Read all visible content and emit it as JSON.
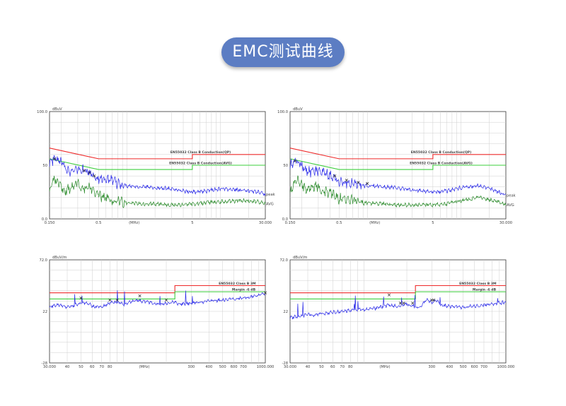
{
  "header": {
    "title": "EMC测试曲线"
  },
  "colors": {
    "limit": "#ee2a2a",
    "avg_limit": "#3ecf3e",
    "peak": "#2a2ae8",
    "avg": "#2a8a2a",
    "grid": "#cfcfcf",
    "axis": "#333333"
  },
  "chart_data": [
    {
      "type": "line",
      "title": "",
      "xscale": "log",
      "ylabel": "dBuV",
      "xlabel": "(MHz)",
      "ylim": [
        0,
        100
      ],
      "xlim": [
        0.15,
        30
      ],
      "ytick_labels": [
        "100.0",
        "50",
        "0.0"
      ],
      "ytick_values": [
        100,
        50,
        0
      ],
      "xtick_labels": [
        "0.150",
        "0.5",
        "(MHz)",
        "5",
        "30.000"
      ],
      "xtick_values": [
        0.15,
        0.5,
        1.2,
        5,
        30
      ],
      "limits": [
        {
          "name": "EN55032 Class B Conduction(QP)",
          "x": [
            0.15,
            0.5,
            5,
            5,
            30
          ],
          "y": [
            66,
            56,
            56,
            60,
            60
          ]
        },
        {
          "name": "EN55032 Class B Conduction(AVG)",
          "x": [
            0.15,
            0.5,
            5,
            5,
            30
          ],
          "y": [
            56,
            46,
            46,
            50,
            50
          ]
        }
      ],
      "series": [
        {
          "name": "peak",
          "x": [
            0.15,
            0.17,
            0.19,
            0.22,
            0.26,
            0.3,
            0.35,
            0.4,
            0.45,
            0.5,
            0.6,
            0.8,
            1,
            1.5,
            2,
            3,
            4,
            5,
            7,
            10,
            15,
            20,
            25,
            30
          ],
          "y": [
            52,
            56,
            54,
            48,
            44,
            46,
            45,
            43,
            40,
            38,
            37,
            33,
            31,
            30,
            29,
            28,
            26,
            25,
            26,
            28,
            27,
            26,
            25,
            23
          ]
        },
        {
          "name": "AVG",
          "x": [
            0.15,
            0.17,
            0.19,
            0.22,
            0.26,
            0.3,
            0.35,
            0.4,
            0.45,
            0.5,
            0.6,
            0.8,
            1,
            1.5,
            2,
            3,
            4,
            5,
            7,
            10,
            15,
            20,
            25,
            30
          ],
          "y": [
            27,
            38,
            32,
            26,
            30,
            33,
            28,
            30,
            25,
            22,
            19,
            17,
            15,
            14,
            14,
            13,
            13,
            14,
            15,
            16,
            17,
            17,
            16,
            14
          ]
        }
      ],
      "markers": [
        {
          "x": 0.17,
          "y": 56
        },
        {
          "x": 0.35,
          "y": 45
        },
        {
          "x": 0.4,
          "y": 43
        },
        {
          "x": 0.45,
          "y": 40
        }
      ]
    },
    {
      "type": "line",
      "title": "",
      "xscale": "log",
      "ylabel": "dBuV",
      "xlabel": "(MHz)",
      "ylim": [
        0,
        100
      ],
      "xlim": [
        0.15,
        30
      ],
      "ytick_labels": [
        "100.0",
        "50",
        "0.0"
      ],
      "ytick_values": [
        100,
        50,
        0
      ],
      "xtick_labels": [
        "0.150",
        "0.5",
        "(MHz)",
        "5",
        "30.000"
      ],
      "xtick_values": [
        0.15,
        0.5,
        1.2,
        5,
        30
      ],
      "limits": [
        {
          "name": "EN55032 Class B Conduction(QP)",
          "x": [
            0.15,
            0.5,
            5,
            5,
            30
          ],
          "y": [
            66,
            56,
            56,
            60,
            60
          ]
        },
        {
          "name": "EN55032 Class B Conduction(AVG)",
          "x": [
            0.15,
            0.5,
            5,
            5,
            30
          ],
          "y": [
            56,
            46,
            46,
            50,
            50
          ]
        }
      ],
      "series": [
        {
          "name": "peak",
          "x": [
            0.15,
            0.17,
            0.19,
            0.22,
            0.26,
            0.3,
            0.35,
            0.4,
            0.45,
            0.5,
            0.6,
            0.8,
            1,
            1.5,
            2,
            3,
            4,
            5,
            7,
            10,
            15,
            20,
            25,
            30
          ],
          "y": [
            50,
            54,
            52,
            46,
            44,
            45,
            42,
            40,
            38,
            36,
            34,
            33,
            31,
            30,
            29,
            27,
            26,
            25,
            26,
            29,
            31,
            28,
            25,
            22
          ]
        },
        {
          "name": "AVG",
          "x": [
            0.15,
            0.17,
            0.19,
            0.22,
            0.26,
            0.3,
            0.35,
            0.4,
            0.45,
            0.5,
            0.6,
            0.8,
            1,
            1.5,
            2,
            3,
            4,
            5,
            7,
            10,
            15,
            20,
            25,
            30
          ],
          "y": [
            26,
            36,
            34,
            28,
            31,
            30,
            26,
            25,
            22,
            19,
            18,
            16,
            15,
            14,
            13,
            13,
            13,
            13,
            14,
            17,
            20,
            18,
            16,
            13
          ]
        }
      ],
      "markers": [
        {
          "x": 0.17,
          "y": 54
        },
        {
          "x": 0.45,
          "y": 40
        },
        {
          "x": 0.6,
          "y": 36
        },
        {
          "x": 0.8,
          "y": 34
        },
        {
          "x": 1,
          "y": 33
        }
      ]
    },
    {
      "type": "line",
      "title": "",
      "xscale": "log",
      "ylabel": "dBuV/m",
      "xlabel": "(MHz)",
      "ylim": [
        -28,
        72
      ],
      "xlim": [
        30,
        1000
      ],
      "ytick_labels": [
        "72.0",
        "22",
        "-28"
      ],
      "ytick_values": [
        72,
        22,
        -28
      ],
      "xtick_labels": [
        "30.000",
        "40",
        "50",
        "60",
        "70",
        "80",
        "(MHz)",
        "300",
        "400",
        "500",
        "600",
        "700",
        "1000.000"
      ],
      "xtick_values": [
        30,
        40,
        50,
        60,
        70,
        80,
        140,
        300,
        400,
        500,
        600,
        700,
        1000
      ],
      "limits": [
        {
          "name": "EN55032 Class B 3M",
          "x": [
            30,
            230,
            230,
            1000
          ],
          "y": [
            40,
            40,
            47,
            47
          ]
        },
        {
          "name": "Margin -6 dB",
          "x": [
            30,
            230,
            230,
            1000
          ],
          "y": [
            34,
            34,
            41,
            41
          ]
        }
      ],
      "series": [
        {
          "name": "",
          "x": [
            30,
            35,
            40,
            45,
            50,
            55,
            60,
            70,
            80,
            90,
            100,
            120,
            150,
            180,
            200,
            230,
            250,
            300,
            350,
            400,
            500,
            600,
            700,
            800,
            900,
            1000
          ],
          "y": [
            27,
            28,
            26,
            28,
            30,
            31,
            27,
            26,
            30,
            31,
            29,
            33,
            31,
            29,
            30,
            31,
            29,
            30,
            31,
            32,
            33,
            34,
            35,
            36,
            38,
            39
          ]
        }
      ],
      "markers": [
        {
          "x": 50,
          "y": 35
        },
        {
          "x": 80,
          "y": 33
        },
        {
          "x": 90,
          "y": 33
        },
        {
          "x": 130,
          "y": 37
        },
        {
          "x": 200,
          "y": 33
        },
        {
          "x": 1000,
          "y": 40
        }
      ]
    },
    {
      "type": "line",
      "title": "",
      "xscale": "log",
      "ylabel": "dBuV/m",
      "xlabel": "(MHz)",
      "ylim": [
        -28,
        72
      ],
      "xlim": [
        30,
        1000
      ],
      "ytick_labels": [
        "72.0",
        "22",
        "-28"
      ],
      "ytick_values": [
        72,
        22,
        -28
      ],
      "xtick_labels": [
        "30.000",
        "40",
        "50",
        "60",
        "70",
        "80",
        "(MHz)",
        "300",
        "400",
        "500",
        "600",
        "700",
        "1000.000"
      ],
      "xtick_values": [
        30,
        40,
        50,
        60,
        70,
        80,
        140,
        300,
        400,
        500,
        600,
        700,
        1000
      ],
      "limits": [
        {
          "name": "EN55032 Class B 3M",
          "x": [
            30,
            230,
            230,
            1000
          ],
          "y": [
            40,
            40,
            47,
            47
          ]
        },
        {
          "name": "Margin -6 dB",
          "x": [
            30,
            230,
            230,
            1000
          ],
          "y": [
            34,
            34,
            41,
            41
          ]
        }
      ],
      "series": [
        {
          "name": "",
          "x": [
            30,
            35,
            40,
            45,
            50,
            60,
            70,
            80,
            90,
            100,
            120,
            150,
            170,
            200,
            230,
            250,
            280,
            300,
            320,
            350,
            400,
            500,
            600,
            700,
            800,
            900,
            1000
          ],
          "y": [
            16,
            17,
            19,
            18,
            20,
            21,
            22,
            23,
            24,
            24,
            25,
            28,
            27,
            29,
            26,
            27,
            34,
            30,
            33,
            28,
            27,
            26,
            27,
            28,
            29,
            30,
            31
          ]
        }
      ],
      "markers": [
        {
          "x": 150,
          "y": 38
        },
        {
          "x": 180,
          "y": 30
        },
        {
          "x": 190,
          "y": 30
        },
        {
          "x": 220,
          "y": 30
        },
        {
          "x": 300,
          "y": 33
        },
        {
          "x": 310,
          "y": 33
        }
      ]
    }
  ]
}
